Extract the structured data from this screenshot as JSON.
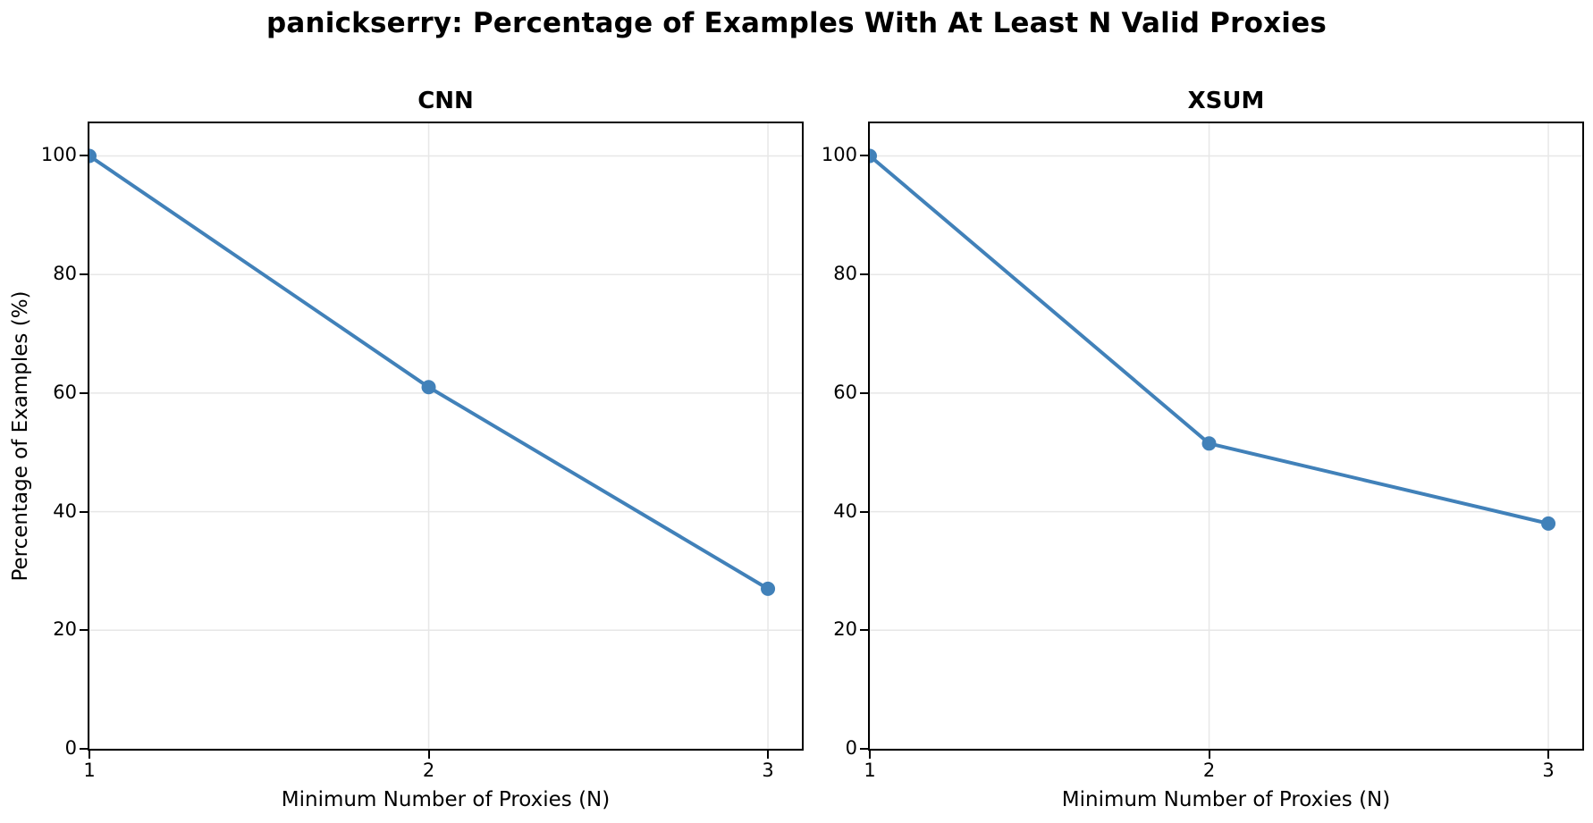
{
  "figure": {
    "title": "panickserry: Percentage of Examples With At Least N Valid Proxies",
    "background_color": "#ffffff",
    "text_color": "#000000"
  },
  "style": {
    "line_color": "#4181b9",
    "grid_color": "#e7e7e7",
    "spine_color": "#000000"
  },
  "chart_data": [
    {
      "type": "line",
      "title": "CNN",
      "x": [
        1,
        2,
        3
      ],
      "values": [
        100,
        61,
        27
      ],
      "xlabel": "Minimum Number of Proxies (N)",
      "ylabel": "Percentage of Examples (%)",
      "xticks": [
        1,
        2,
        3
      ],
      "yticks": [
        0,
        20,
        40,
        60,
        80,
        100
      ],
      "xlim": [
        1,
        3.1
      ],
      "ylim": [
        0,
        105.5
      ],
      "grid": true,
      "legend": null,
      "marker": "circle"
    },
    {
      "type": "line",
      "title": "XSUM",
      "x": [
        1,
        2,
        3
      ],
      "values": [
        100,
        51.5,
        38
      ],
      "xlabel": "Minimum Number of Proxies (N)",
      "ylabel": "Percentage of Examples (%)",
      "xticks": [
        1,
        2,
        3
      ],
      "yticks": [
        0,
        20,
        40,
        60,
        80,
        100
      ],
      "xlim": [
        1,
        3.1
      ],
      "ylim": [
        0,
        105.5
      ],
      "grid": true,
      "legend": null,
      "marker": "circle"
    }
  ]
}
